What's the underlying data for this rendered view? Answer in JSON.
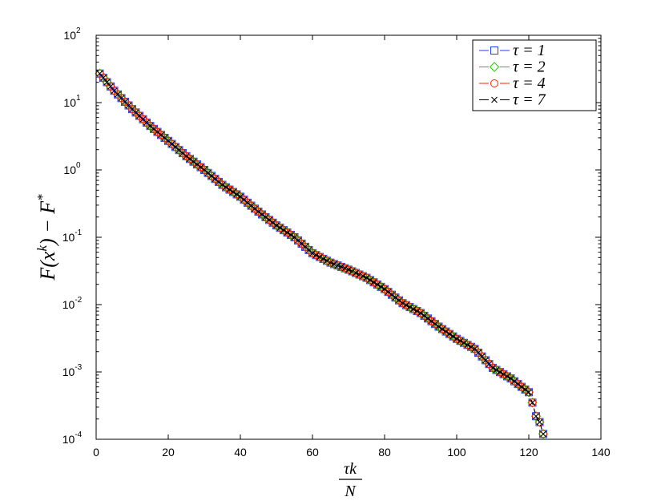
{
  "chart_data": {
    "type": "line",
    "title": "",
    "xlabel": {
      "numerator": "τk",
      "denominator": "N"
    },
    "ylabel": {
      "part1": "F(x",
      "sup1": "k",
      "part2": ") − F",
      "sup2": "*"
    },
    "xlim": [
      0,
      140
    ],
    "ylim": [
      0.0001,
      100
    ],
    "yscale": "log",
    "grid": false,
    "legend_position": "top-right",
    "x_ticks": [
      "0",
      "20",
      "40",
      "60",
      "80",
      "100",
      "120",
      "140"
    ],
    "y_ticks": [
      {
        "base": "10",
        "exp": "-4"
      },
      {
        "base": "10",
        "exp": "-3"
      },
      {
        "base": "10",
        "exp": "-2"
      },
      {
        "base": "10",
        "exp": "-1"
      },
      {
        "base": "10",
        "exp": "0"
      },
      {
        "base": "10",
        "exp": "1"
      },
      {
        "base": "10",
        "exp": "2"
      }
    ],
    "anchors": {
      "x": [
        1,
        5,
        10,
        15,
        20,
        25,
        30,
        35,
        40,
        45,
        50,
        55,
        60,
        65,
        70,
        75,
        80,
        85,
        90,
        95,
        100,
        105,
        110,
        115,
        118,
        120,
        121,
        122,
        123,
        124
      ],
      "y": [
        27,
        15,
        8,
        4.5,
        2.7,
        1.6,
        1.0,
        0.6,
        0.4,
        0.24,
        0.15,
        0.1,
        0.058,
        0.042,
        0.033,
        0.025,
        0.017,
        0.0105,
        0.0075,
        0.0047,
        0.0031,
        0.0022,
        0.00115,
        0.0008,
        0.0006,
        0.0005,
        0.00035,
        0.00022,
        0.00018,
        0.00012
      ]
    },
    "x_start": 1,
    "x_end": 124,
    "series": [
      {
        "name": "τ = 1",
        "color": "#1f3fff",
        "marker": "square",
        "dash": "6,5"
      },
      {
        "name": "τ = 2",
        "color": "#22cc00",
        "marker": "diamond",
        "dash": "6,5"
      },
      {
        "name": "τ = 4",
        "color": "#ff2200",
        "marker": "circle",
        "dash": "6,5"
      },
      {
        "name": "τ = 7",
        "color": "#000000",
        "marker": "x",
        "dash": "6,5"
      }
    ]
  }
}
